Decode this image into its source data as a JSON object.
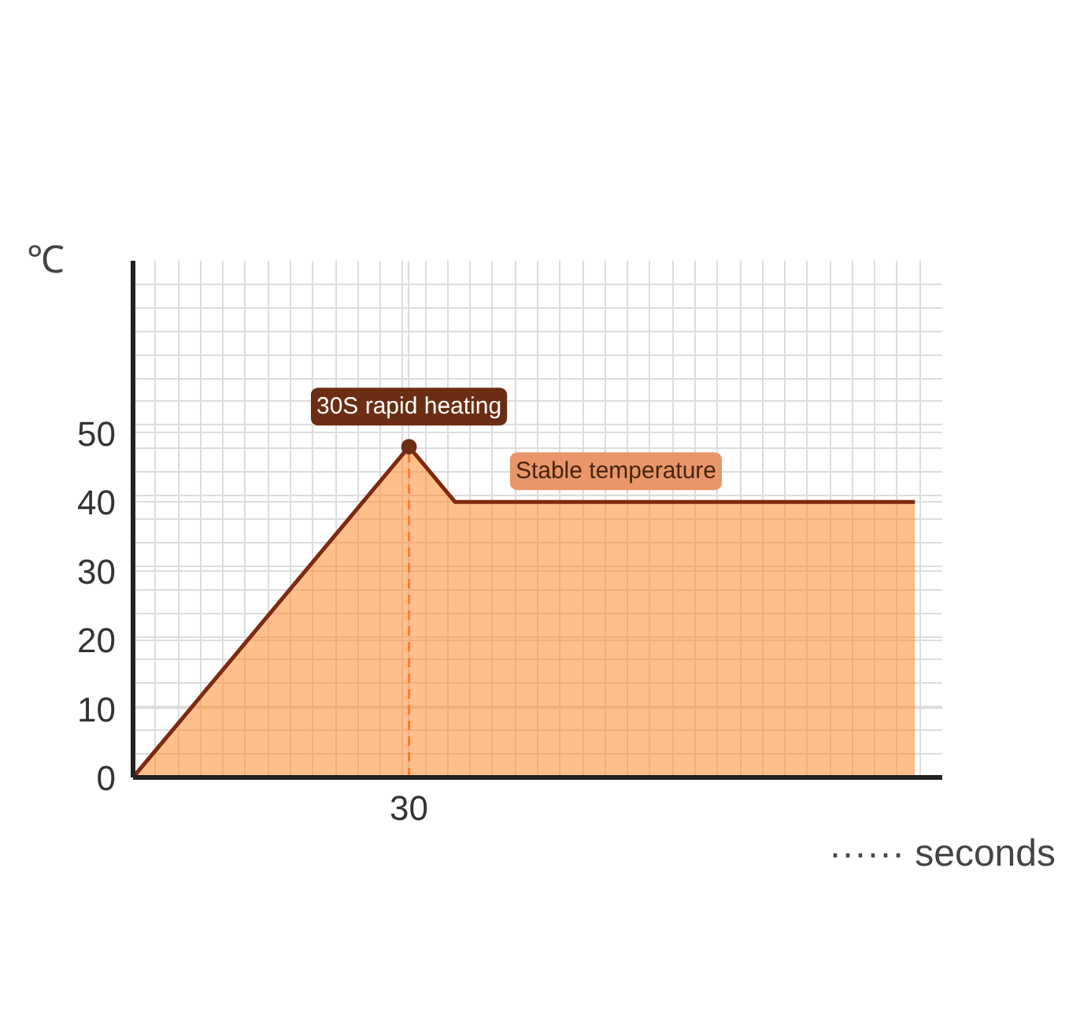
{
  "chart_data": {
    "type": "area",
    "xlabel": "······ seconds",
    "ylabel": "℃",
    "categories": [
      null,
      null,
      null,
      null,
      null,
      null,
      "30",
      null,
      null,
      null,
      null,
      null,
      null,
      null,
      null,
      null,
      null,
      null
    ],
    "series": [
      {
        "color": "#ff8a2e",
        "values": [
          0,
          8,
          16,
          24,
          32,
          40,
          48,
          40,
          40,
          40,
          40,
          40,
          40,
          40,
          40,
          40,
          40,
          40
        ]
      }
    ],
    "ylim": [
      0,
      75
    ],
    "yticks": [
      0,
      10,
      20,
      30,
      40,
      50
    ],
    "grid": true,
    "ref_lines": [
      {
        "axis": "x",
        "value": "30",
        "color": "#ff7a2a",
        "line_style": "dashed"
      }
    ],
    "annotations": [
      "30S rapid heating",
      "Stable temperature"
    ]
  }
}
